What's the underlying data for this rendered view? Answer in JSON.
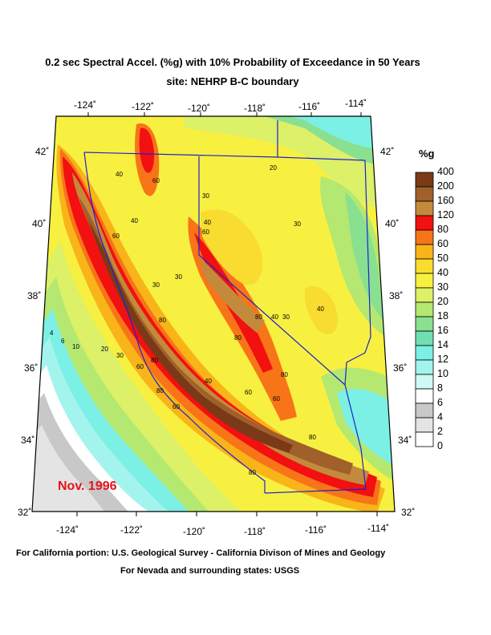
{
  "title": "0.2 sec Spectral Accel. (%g) with 10% Probability of Exceedance in 50 Years",
  "subtitle": "site: NEHRP B-C boundary",
  "date_stamp": "Nov. 1996",
  "credits": [
    "For California portion: U.S. Geological Survey - California Divison of Mines and Geology",
    "For Nevada and surrounding states: USGS"
  ],
  "legend": {
    "unit": "%g",
    "bins": [
      {
        "label": "400",
        "color": "#4a2410"
      },
      {
        "label": "200",
        "color": "#7a3a18"
      },
      {
        "label": "160",
        "color": "#a0602a"
      },
      {
        "label": "120",
        "color": "#c48a3c"
      },
      {
        "label": "80",
        "color": "#f21010"
      },
      {
        "label": "60",
        "color": "#f87418"
      },
      {
        "label": "50",
        "color": "#f8b418"
      },
      {
        "label": "40",
        "color": "#f8dc30"
      },
      {
        "label": "30",
        "color": "#f8f040"
      },
      {
        "label": "20",
        "color": "#dcf068"
      },
      {
        "label": "18",
        "color": "#b4e870"
      },
      {
        "label": "16",
        "color": "#88e090"
      },
      {
        "label": "14",
        "color": "#70e0b4"
      },
      {
        "label": "12",
        "color": "#7cf0e4"
      },
      {
        "label": "10",
        "color": "#a4f4ee"
      },
      {
        "label": "8",
        "color": "#d0f8f4"
      },
      {
        "label": "6",
        "color": "#ffffff"
      },
      {
        "label": "4",
        "color": "#c8c8c8"
      },
      {
        "label": "2",
        "color": "#e4e4e4"
      },
      {
        "label": "0",
        "color": "#ffffff"
      }
    ]
  },
  "axes": {
    "top_lon": [
      "-124˚",
      "-122˚",
      "-120˚",
      "-118˚",
      "-116˚",
      "-114˚"
    ],
    "bottom_lon": [
      "-124˚",
      "-122˚",
      "-120˚",
      "-118˚",
      "-116˚",
      "-114˚"
    ],
    "left_lat": [
      "42˚",
      "40˚",
      "38˚",
      "36˚",
      "34˚",
      "32˚"
    ],
    "right_lat": [
      "42˚",
      "40˚",
      "38˚",
      "36˚",
      "34˚",
      "32˚"
    ]
  },
  "contour_labels": [
    "40",
    "60",
    "30",
    "40",
    "20",
    "60",
    "40",
    "30",
    "60",
    "30",
    "30",
    "80",
    "40",
    "30",
    "40",
    "80",
    "80",
    "30",
    "60",
    "40",
    "80",
    "60",
    "60",
    "80",
    "60",
    "80",
    "80",
    "80",
    "20",
    "10",
    "6",
    "4"
  ],
  "colors": {
    "ocean": "#ffffff",
    "state_border": "#2020d0",
    "date_text": "#e8121a"
  }
}
